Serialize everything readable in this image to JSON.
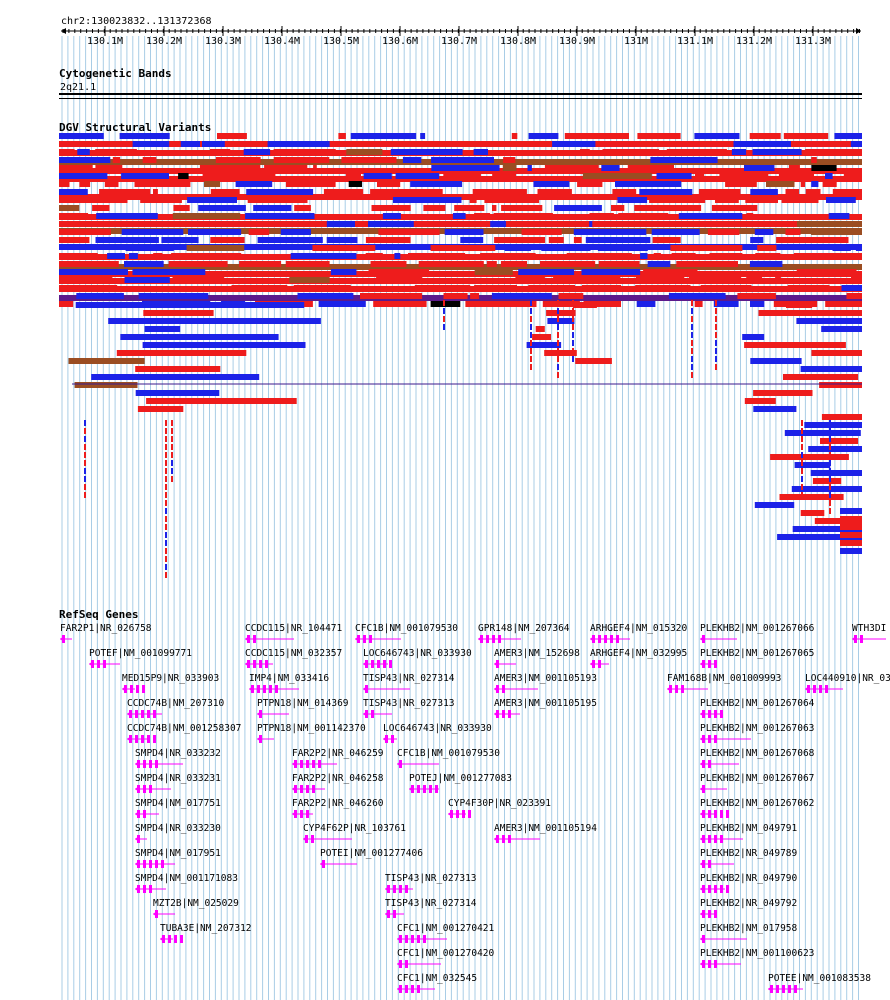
{
  "location_label": "chr2:130023832..131372368",
  "ruler": {
    "ticks": [
      "130.1M",
      "130.2M",
      "130.3M",
      "130.4M",
      "130.5M",
      "130.6M",
      "130.7M",
      "130.8M",
      "130.9M",
      "131M",
      "131.1M",
      "131.2M",
      "131.3M"
    ]
  },
  "cytoband": {
    "title": "Cytogenetic Bands",
    "band": "2q21.1"
  },
  "dgv": {
    "title": "DGV Structural Variants"
  },
  "refseq": {
    "title": "RefSeq Genes",
    "genes": [
      "FAR2P1|NR_026758",
      "CCDC115|NR_104471",
      "CFC1B|NM_001079530",
      "GPR148|NM_207364",
      "ARHGEF4|NM_015320",
      "PLEKHB2|NM_001267066",
      "WTH3DI",
      "POTEF|NM_001099771",
      "CCDC115|NM_032357",
      "LOC646743|NR_033930",
      "AMER3|NM_152698",
      "ARHGEF4|NM_032995",
      "PLEKHB2|NM_001267065",
      "MED15P9|NR_033903",
      "IMP4|NM_033416",
      "TISP43|NR_027314",
      "AMER3|NM_001105193",
      "FAM168B|NM_001009993",
      "LOC440910|NR_03",
      "CCDC74B|NM_207310",
      "PTPN18|NM_014369",
      "TISP43|NR_027313",
      "AMER3|NM_001105195",
      "PLEKHB2|NM_001267064",
      "CCDC74B|NM_001258307",
      "PTPN18|NM_001142370",
      "LOC646743|NR_033930",
      "PLEKHB2|NM_001267063",
      "SMPD4|NR_033232",
      "FAR2P2|NR_046259",
      "CFC1B|NM_001079530",
      "PLEKHB2|NM_001267068",
      "SMPD4|NR_033231",
      "FAR2P2|NR_046258",
      "POTEJ|NM_001277083",
      "PLEKHB2|NM_001267067",
      "SMPD4|NM_017751",
      "FAR2P2|NR_046260",
      "CYP4F30P|NR_023391",
      "PLEKHB2|NM_001267062",
      "SMPD4|NR_033230",
      "CYP4F62P|NR_103761",
      "AMER3|NM_001105194",
      "PLEKHB2|NM_049791",
      "SMPD4|NM_017951",
      "POTEI|NM_001277406",
      "PLEKHB2|NR_049789",
      "SMPD4|NM_001171083",
      "TISP43|NR_027313",
      "PLEKHB2|NR_049790",
      "MZT2B|NM_025029",
      "TISP43|NR_027314",
      "PLEKHB2|NR_049792",
      "TUBA3E|NM_207312",
      "CFC1|NM_001270421",
      "PLEKHB2|NM_017958",
      "CFC1|NM_001270420",
      "PLEKHB2|NM_001100623",
      "CFC1|NM_032545",
      "POTEE|NM_001083538"
    ]
  },
  "colors": {
    "grid": "#a9cde6",
    "loss": "#ee1c1c",
    "gain": "#1c22e8",
    "inversion": "#9b4d22",
    "complex": "#5c1a8c",
    "gene": "#ff00ff"
  }
}
